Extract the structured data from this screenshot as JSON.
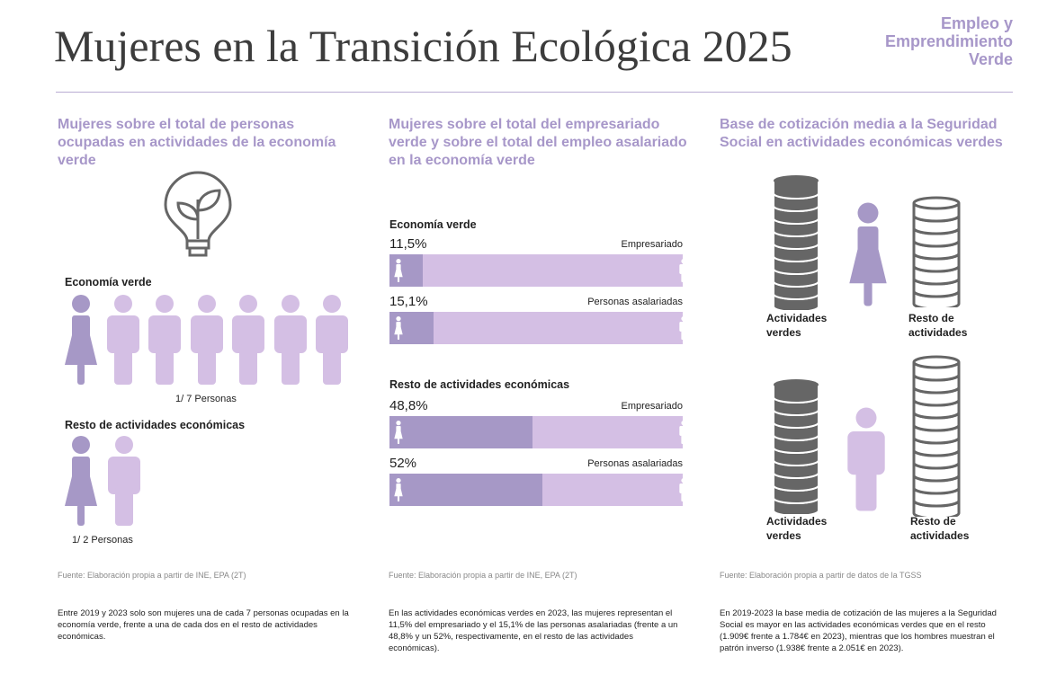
{
  "header": {
    "title": "Mujeres en la Transición Ecológica 2025",
    "brand": [
      "Empleo y",
      "Emprendimiento",
      "Verde"
    ]
  },
  "colors": {
    "accent": "#a797c9",
    "woman": "#a698c6",
    "man": "#d4bfe4",
    "coin": "#666666"
  },
  "col1": {
    "heading": "Mujeres sobre el total de personas ocupadas en actividades de la economía verde",
    "icon": "lightbulb-plant-icon",
    "group1": {
      "label": "Economía verde",
      "caption": "1/ 7 Personas"
    },
    "group2": {
      "label": "Resto de actividades económicas",
      "caption": "1/ 2 Personas"
    },
    "source": "Fuente: Elaboración propia a partir de INE, EPA (2T)",
    "text": "Entre 2019 y 2023 solo son mujeres una de cada 7 personas ocupadas en la economía verde, frente a una de cada dos en el resto de actividades económicas."
  },
  "col2": {
    "heading": "Mujeres sobre el total del empresariado verde y sobre el total del empleo asalariado en la economía verde",
    "sections": [
      {
        "label": "Economía verde",
        "bars": [
          {
            "pct_label": "11,5%",
            "value": 11.5,
            "category": "Empresariado"
          },
          {
            "pct_label": "15,1%",
            "value": 15.1,
            "category": "Personas asalariadas"
          }
        ]
      },
      {
        "label": "Resto de actividades económicas",
        "bars": [
          {
            "pct_label": "48,8%",
            "value": 48.8,
            "category": "Empresariado"
          },
          {
            "pct_label": "52%",
            "value": 52,
            "category": "Personas asalariadas"
          }
        ]
      }
    ],
    "source": "Fuente: Elaboración propia a partir de INE, EPA (2T)",
    "text": "En las actividades económicas verdes en 2023, las mujeres representan el 11,5% del empresariado y el 15,1%  de las personas asalariadas (frente a un 48,8% y un 52%, respectivamente, en el resto de las actividades económicas)."
  },
  "col3": {
    "heading": "Base de cotización media a la Seguridad Social en actividades económicas verdes",
    "women": {
      "green": "Actividades verdes",
      "rest": "Resto de actividades"
    },
    "men": {
      "green": "Actividades verdes",
      "rest": "Resto de actividades"
    },
    "source": "Fuente: Elaboración propia a partir de datos de la TGSS",
    "text": "En 2019-2023 la base media de cotización de las mujeres a la Seguridad Social es mayor en las actividades económicas verdes que en el resto (1.909€ frente a 1.784€ en 2023), mientras que los hombres muestran el patrón inverso (1.938€ frente a 2.051€ en 2023)."
  }
}
